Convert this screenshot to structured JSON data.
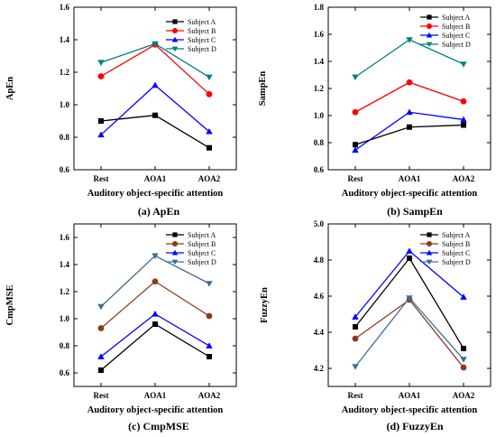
{
  "panels": [
    {
      "chart_data": {
        "type": "line",
        "caption": "(a) ApEn",
        "xlabel": "Auditory object-specific attention",
        "ylabel": "ApEn",
        "categories": [
          "Rest",
          "AOA1",
          "AOA2"
        ],
        "ylim": [
          0.6,
          1.6
        ],
        "yticks": [
          0.6,
          0.8,
          1.0,
          1.2,
          1.4,
          1.6
        ],
        "ytick_labels": [
          "0.6",
          "0.8",
          "1.0",
          "1.2",
          "1.4",
          "1.6"
        ],
        "legend_position": "top-right",
        "series": [
          {
            "name": "Subject A",
            "color": "#000000",
            "marker": "square",
            "values": [
              0.9,
              0.935,
              0.735
            ]
          },
          {
            "name": "Subject B",
            "color": "#ff0000",
            "marker": "circle",
            "values": [
              1.175,
              1.37,
              1.065
            ]
          },
          {
            "name": "Subject C",
            "color": "#0000ff",
            "marker": "triangle-up",
            "values": [
              0.815,
              1.12,
              0.835
            ]
          },
          {
            "name": "Subject D",
            "color": "#008080",
            "marker": "triangle-down",
            "values": [
              1.26,
              1.375,
              1.17
            ]
          }
        ]
      }
    },
    {
      "chart_data": {
        "type": "line",
        "caption": "(b) SampEn",
        "xlabel": "Auditory object-specific attention",
        "ylabel": "SampEn",
        "categories": [
          "Rest",
          "AOA1",
          "AOA2"
        ],
        "ylim": [
          0.6,
          1.8
        ],
        "yticks": [
          0.6,
          0.8,
          1.0,
          1.2,
          1.4,
          1.6,
          1.8
        ],
        "ytick_labels": [
          "0.6",
          "0.8",
          "1.0",
          "1.2",
          "1.4",
          "1.6",
          "1.8"
        ],
        "legend_position": "top-right",
        "series": [
          {
            "name": "Subject A",
            "color": "#000000",
            "marker": "square",
            "values": [
              0.785,
              0.915,
              0.93
            ]
          },
          {
            "name": "Subject B",
            "color": "#ff0000",
            "marker": "circle",
            "values": [
              1.025,
              1.245,
              1.105
            ]
          },
          {
            "name": "Subject C",
            "color": "#0000ff",
            "marker": "triangle-up",
            "values": [
              0.745,
              1.025,
              0.97
            ]
          },
          {
            "name": "Subject D",
            "color": "#008080",
            "marker": "triangle-down",
            "values": [
              1.285,
              1.56,
              1.38
            ]
          }
        ]
      }
    },
    {
      "chart_data": {
        "type": "line",
        "caption": "(c) CmpMSE",
        "xlabel": "Auditory object-specific attention",
        "ylabel": "CmpMSE",
        "categories": [
          "Rest",
          "AOA1",
          "AOA2"
        ],
        "ylim": [
          0.5,
          1.7
        ],
        "yticks": [
          0.6,
          0.8,
          1.0,
          1.2,
          1.4,
          1.6
        ],
        "ytick_labels": [
          "0.6",
          "0.8",
          "1.0",
          "1.2",
          "1.4",
          "1.6"
        ],
        "legend_position": "top-right",
        "series": [
          {
            "name": "Subject A",
            "color": "#000000",
            "marker": "square",
            "values": [
              0.62,
              0.96,
              0.72
            ]
          },
          {
            "name": "Subject B",
            "color": "#8b3a1a",
            "marker": "circle",
            "values": [
              0.93,
              1.275,
              1.02
            ]
          },
          {
            "name": "Subject C",
            "color": "#0000ff",
            "marker": "triangle-up",
            "values": [
              0.72,
              1.035,
              0.8
            ]
          },
          {
            "name": "Subject D",
            "color": "#3c6e96",
            "marker": "triangle-down",
            "values": [
              1.09,
              1.465,
              1.26
            ]
          }
        ]
      }
    },
    {
      "chart_data": {
        "type": "line",
        "caption": "(d) FuzzyEn",
        "xlabel": "Auditory object-specific attention",
        "ylabel": "FuzzyEn",
        "categories": [
          "Rest",
          "AOA1",
          "AOA2"
        ],
        "ylim": [
          4.1,
          5.0
        ],
        "yticks": [
          4.2,
          4.4,
          4.6,
          4.8,
          5.0
        ],
        "ytick_labels": [
          "4.2",
          "4.4",
          "4.6",
          "4.8",
          "5.0"
        ],
        "legend_position": "top-right",
        "series": [
          {
            "name": "Subject A",
            "color": "#000000",
            "marker": "square",
            "values": [
              4.43,
              4.81,
              4.31
            ]
          },
          {
            "name": "Subject B",
            "color": "#8b3a1a",
            "marker": "circle",
            "values": [
              4.365,
              4.58,
              4.205
            ]
          },
          {
            "name": "Subject C",
            "color": "#0000ff",
            "marker": "triangle-up",
            "values": [
              4.485,
              4.85,
              4.595
            ]
          },
          {
            "name": "Subject D",
            "color": "#3c6e96",
            "marker": "triangle-down",
            "values": [
              4.21,
              4.59,
              4.25
            ]
          }
        ]
      }
    }
  ]
}
